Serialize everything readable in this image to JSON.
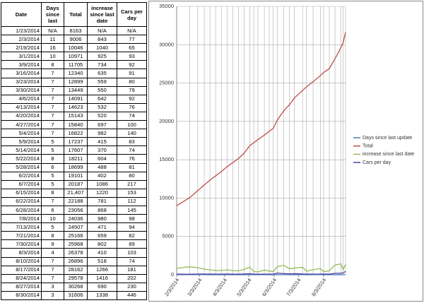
{
  "table": {
    "columns": [
      "Date",
      "Days since last",
      "Total",
      "increase since last date",
      "Cars per day"
    ],
    "rows": [
      [
        "1/23/2014",
        "N/A",
        "8163",
        "N/A",
        "N/A"
      ],
      [
        "2/3/2014",
        "11",
        "9006",
        "843",
        "77"
      ],
      [
        "2/19/2014",
        "16",
        "10046",
        "1040",
        "65"
      ],
      [
        "3/1/2014",
        "10",
        "10971",
        "925",
        "93"
      ],
      [
        "3/9/2014",
        "8",
        "11705",
        "734",
        "92"
      ],
      [
        "3/16/2014",
        "7",
        "12340",
        "635",
        "91"
      ],
      [
        "3/23/2014",
        "7",
        "12899",
        "559",
        "80"
      ],
      [
        "3/30/2014",
        "7",
        "13449",
        "550",
        "79"
      ],
      [
        "4/6/2014",
        "7",
        "14091",
        "642",
        "92"
      ],
      [
        "4/13/2014",
        "7",
        "14623",
        "532",
        "76"
      ],
      [
        "4/20/2014",
        "7",
        "15143",
        "520",
        "74"
      ],
      [
        "4/27/2014",
        "7",
        "15840",
        "697",
        "100"
      ],
      [
        "5/4/2014",
        "7",
        "16822",
        "982",
        "140"
      ],
      [
        "5/9/2014",
        "5",
        "17237",
        "415",
        "83"
      ],
      [
        "5/14/2014",
        "5",
        "17607",
        "370",
        "74"
      ],
      [
        "5/22/2014",
        "8",
        "18211",
        "604",
        "76"
      ],
      [
        "5/28/2014",
        "6",
        "18699",
        "488",
        "81"
      ],
      [
        "6/2/2014",
        "5",
        "19101",
        "402",
        "80"
      ],
      [
        "6/7/2014",
        "5",
        "20187",
        "1086",
        "217"
      ],
      [
        "6/15/2014",
        "8",
        "21,407",
        "1220",
        "153"
      ],
      [
        "6/22/2014",
        "7",
        "22188",
        "781",
        "112"
      ],
      [
        "6/28/2014",
        "6",
        "23056",
        "868",
        "145"
      ],
      [
        "7/8/2014",
        "10",
        "24036",
        "980",
        "98"
      ],
      [
        "7/13/2014",
        "5",
        "24507",
        "471",
        "94"
      ],
      [
        "7/21/2014",
        "8",
        "25166",
        "659",
        "82"
      ],
      [
        "7/30/2014",
        "9",
        "25968",
        "802",
        "89"
      ],
      [
        "8/3/2014",
        "4",
        "26378",
        "410",
        "103"
      ],
      [
        "8/10/2014",
        "7",
        "26896",
        "518",
        "74"
      ],
      [
        "8/17/2014",
        "7",
        "28162",
        "1266",
        "181"
      ],
      [
        "8/24/2014",
        "7",
        "29578",
        "1416",
        "202"
      ],
      [
        "8/27/2014",
        "3",
        "30268",
        "690",
        "230"
      ],
      [
        "8/30/2014",
        "3",
        "31606",
        "1338",
        "446"
      ]
    ]
  },
  "chart_data": {
    "type": "line",
    "x": [
      "2/3/2014",
      "2/19/2014",
      "3/1/2014",
      "3/9/2014",
      "3/16/2014",
      "3/23/2014",
      "3/30/2014",
      "4/6/2014",
      "4/13/2014",
      "4/20/2014",
      "4/27/2014",
      "5/4/2014",
      "5/9/2014",
      "5/14/2014",
      "5/22/2014",
      "5/28/2014",
      "6/2/2014",
      "6/7/2014",
      "6/15/2014",
      "6/22/2014",
      "6/28/2014",
      "7/8/2014",
      "7/13/2014",
      "7/21/2014",
      "7/30/2014",
      "8/3/2014",
      "8/10/2014",
      "8/17/2014",
      "8/24/2014",
      "8/27/2014",
      "8/30/2014"
    ],
    "series": [
      {
        "name": "Days since last update",
        "color": "#4a7ebb",
        "values": [
          11,
          16,
          10,
          8,
          7,
          7,
          7,
          7,
          7,
          7,
          7,
          7,
          5,
          5,
          8,
          6,
          5,
          5,
          8,
          7,
          6,
          10,
          5,
          8,
          9,
          4,
          7,
          7,
          7,
          3,
          3
        ]
      },
      {
        "name": "Total",
        "color": "#be4b48",
        "values": [
          9006,
          10046,
          10971,
          11705,
          12340,
          12899,
          13449,
          14091,
          14623,
          15143,
          15840,
          16822,
          17237,
          17607,
          18211,
          18699,
          19101,
          20187,
          21407,
          22188,
          23056,
          24036,
          24507,
          25166,
          25968,
          26378,
          26896,
          28162,
          29578,
          30268,
          31606
        ]
      },
      {
        "name": "increase since last date",
        "color": "#98b954",
        "values": [
          843,
          1040,
          925,
          734,
          635,
          559,
          550,
          642,
          532,
          520,
          697,
          982,
          415,
          370,
          604,
          488,
          402,
          1086,
          1220,
          781,
          868,
          980,
          471,
          659,
          802,
          410,
          518,
          1266,
          1416,
          690,
          1338
        ]
      },
      {
        "name": "Cars per day",
        "color": "#4d3f9e",
        "values": [
          77,
          65,
          93,
          92,
          91,
          80,
          79,
          92,
          76,
          74,
          100,
          140,
          83,
          74,
          76,
          81,
          80,
          217,
          153,
          112,
          145,
          98,
          94,
          82,
          89,
          103,
          74,
          181,
          202,
          230,
          446
        ]
      }
    ],
    "ylim": [
      0,
      35000
    ],
    "yticks": [
      0,
      5000,
      10000,
      15000,
      20000,
      25000,
      30000,
      35000
    ],
    "xticks": [
      "2/3/2014",
      "3/3/2014",
      "4/3/2014",
      "5/3/2014",
      "6/3/2014",
      "7/3/2014",
      "8/3/2014"
    ],
    "grid": true,
    "legend": "right"
  }
}
